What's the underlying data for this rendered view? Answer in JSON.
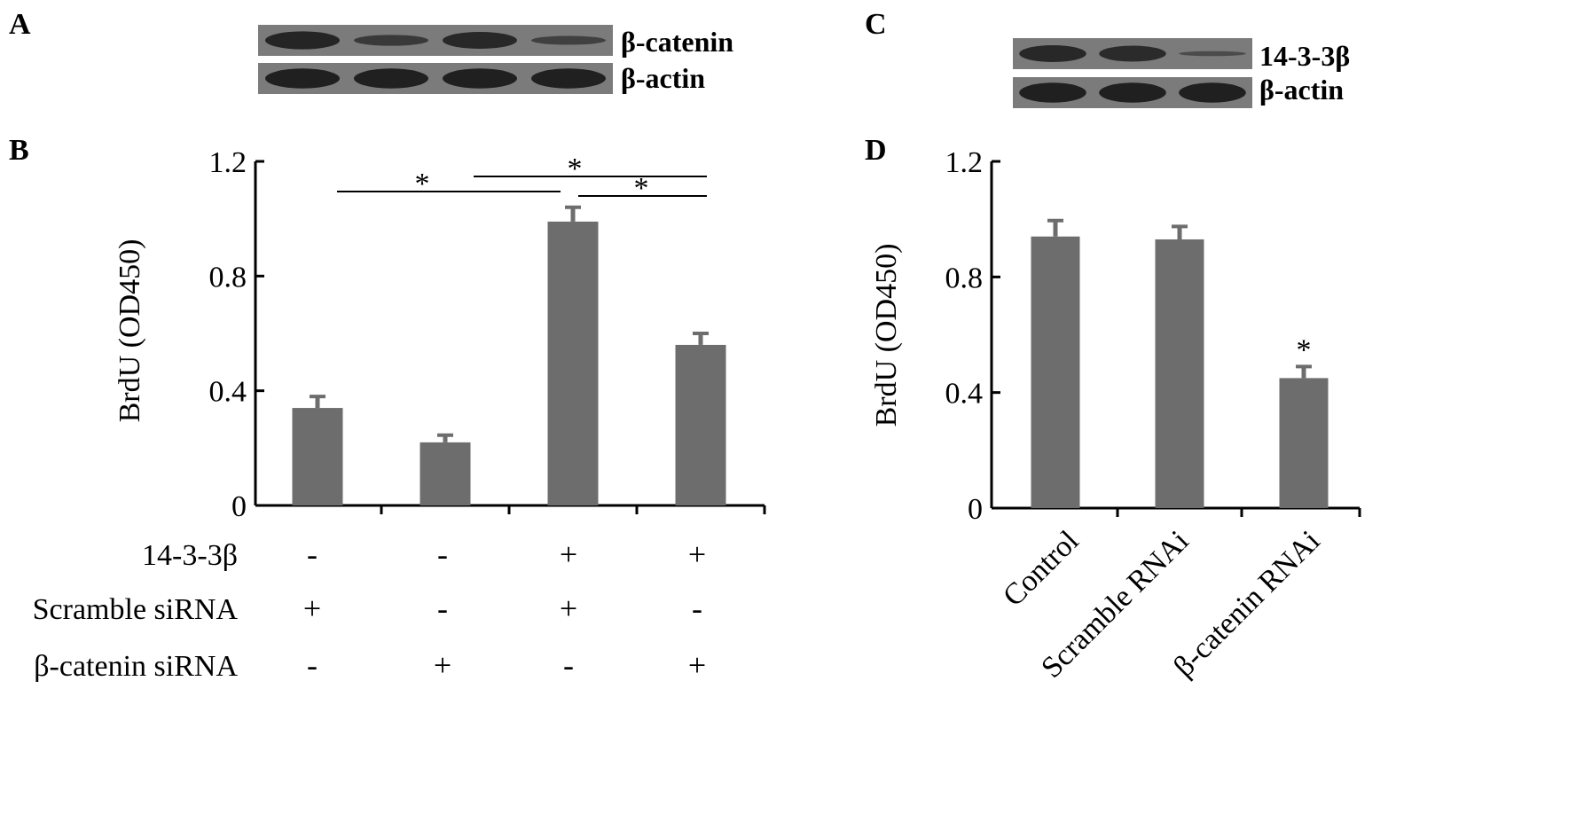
{
  "panels": {
    "a": {
      "letter": "A",
      "blot_labels": [
        "β-catenin",
        "β-actin"
      ],
      "lanes": 4,
      "band_intensity": {
        "β-catenin": [
          0.9,
          0.55,
          0.85,
          0.45
        ],
        "β-actin": [
          1.0,
          1.0,
          1.0,
          1.0
        ]
      }
    },
    "b": {
      "letter": "B"
    },
    "c": {
      "letter": "C",
      "blot_labels": [
        "14-3-3β",
        "β-actin"
      ],
      "lanes": 3,
      "band_intensity": {
        "14-3-3β": [
          0.85,
          0.8,
          0.25
        ],
        "β-actin": [
          1.0,
          1.0,
          1.0
        ]
      }
    },
    "d": {
      "letter": "D"
    }
  },
  "colors": {
    "bar": "#6d6d6d",
    "error": "#6d6d6d",
    "blot_bg": "#7b7b7b",
    "band": "#1b1b1b",
    "axis": "#000000"
  },
  "chart_data": [
    {
      "panel": "B",
      "type": "bar",
      "ylabel": "BrdU (OD450)",
      "ylim": [
        0,
        1.2
      ],
      "yticks": [
        "0",
        "0.4",
        "0.8",
        "1.2"
      ],
      "values": [
        0.34,
        0.22,
        0.99,
        0.56
      ],
      "errors": [
        0.04,
        0.025,
        0.05,
        0.04
      ],
      "condition_table": {
        "rows": [
          {
            "label": "14-3-3β",
            "signs": [
              "-",
              "-",
              "+",
              "+"
            ]
          },
          {
            "label": "Scramble siRNA",
            "signs": [
              "+",
              "-",
              "+",
              "-"
            ]
          },
          {
            "label": "β-catenin siRNA",
            "signs": [
              "-",
              "+",
              "-",
              "+"
            ]
          }
        ]
      },
      "significance": [
        {
          "from": 0,
          "to": 2,
          "label": "*"
        },
        {
          "from": 1,
          "to": 3,
          "label": "*"
        },
        {
          "from": 2,
          "to": 3,
          "label": "*"
        }
      ]
    },
    {
      "panel": "D",
      "type": "bar",
      "ylabel": "BrdU (OD450)",
      "ylim": [
        0,
        1.2
      ],
      "yticks": [
        "0",
        "0.4",
        "0.8",
        "1.2"
      ],
      "categories": [
        "Control",
        "Scramble RNAi",
        "β-catenin RNAi"
      ],
      "values": [
        0.94,
        0.93,
        0.45
      ],
      "errors": [
        0.055,
        0.045,
        0.04
      ],
      "annotations": [
        {
          "index": 2,
          "label": "*"
        }
      ]
    }
  ]
}
